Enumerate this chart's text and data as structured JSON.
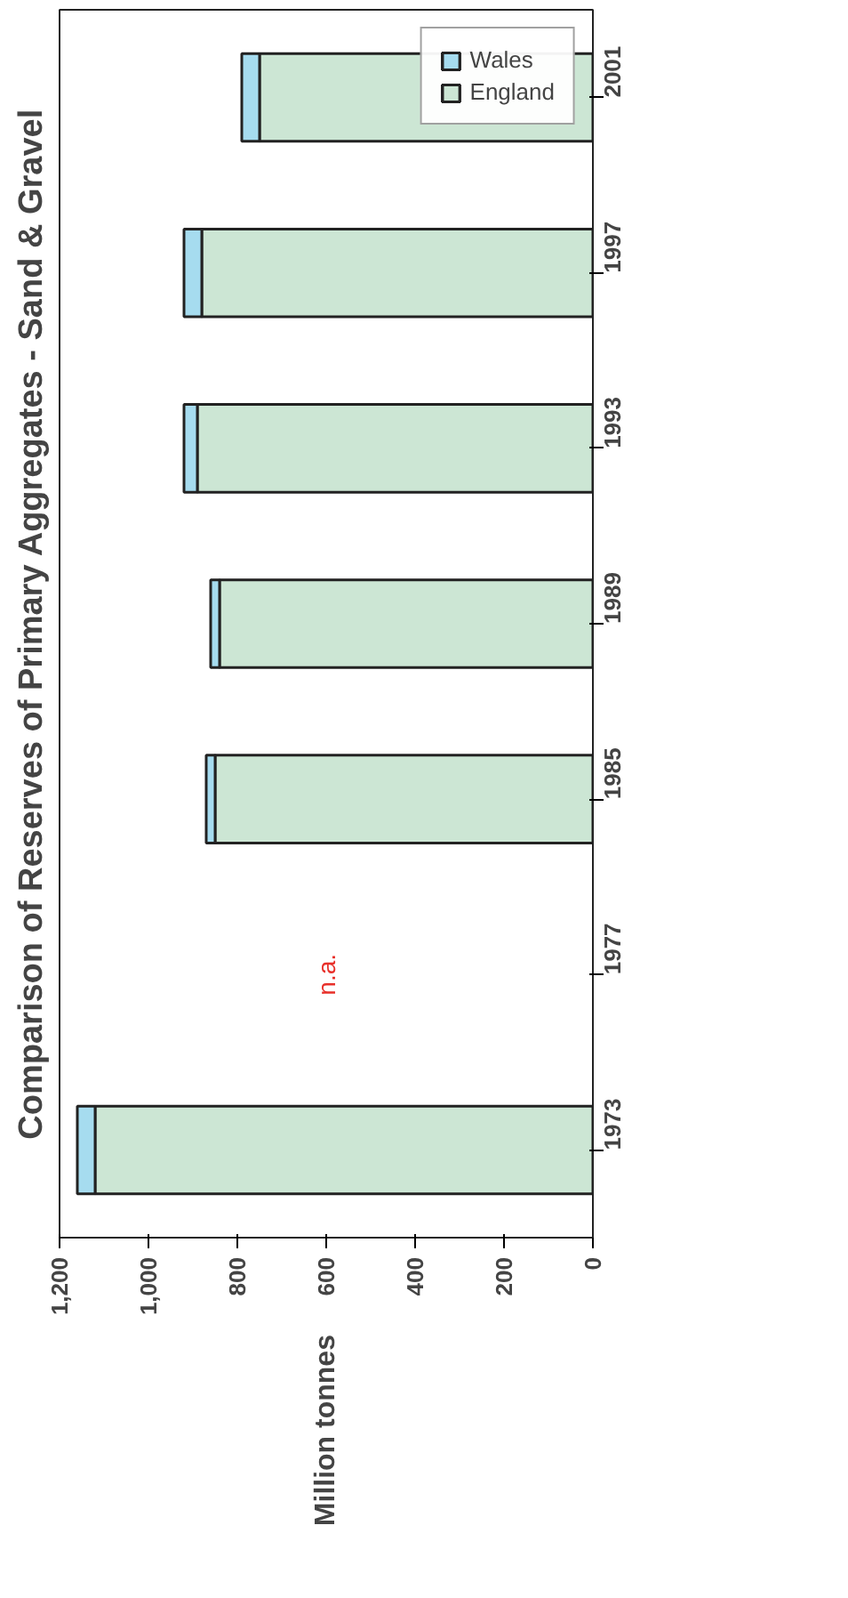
{
  "chart_data": {
    "type": "bar",
    "orientation": "horizontal",
    "stacked": true,
    "title": "Comparison of Reserves of Primary Aggregates - Sand & Gravel",
    "ylabel": "Million tonnes",
    "categories": [
      "2001",
      "1997",
      "1993",
      "1989",
      "1985",
      "1977",
      "1973"
    ],
    "series": [
      {
        "name": "England",
        "color": "#cce6d4",
        "values": [
          750,
          880,
          890,
          840,
          850,
          null,
          1120
        ]
      },
      {
        "name": "Wales",
        "color": "#a6dcef",
        "values": [
          40,
          40,
          30,
          20,
          20,
          null,
          40
        ]
      }
    ],
    "xlim": [
      1200,
      0
    ],
    "xticks": [
      0,
      200,
      400,
      600,
      800,
      {
        "value": 1000,
        "label": "1,000"
      },
      {
        "value": 1200,
        "label": "1,200"
      }
    ],
    "annotations": [
      "n.a."
    ],
    "legend": "top right",
    "grid": false
  }
}
